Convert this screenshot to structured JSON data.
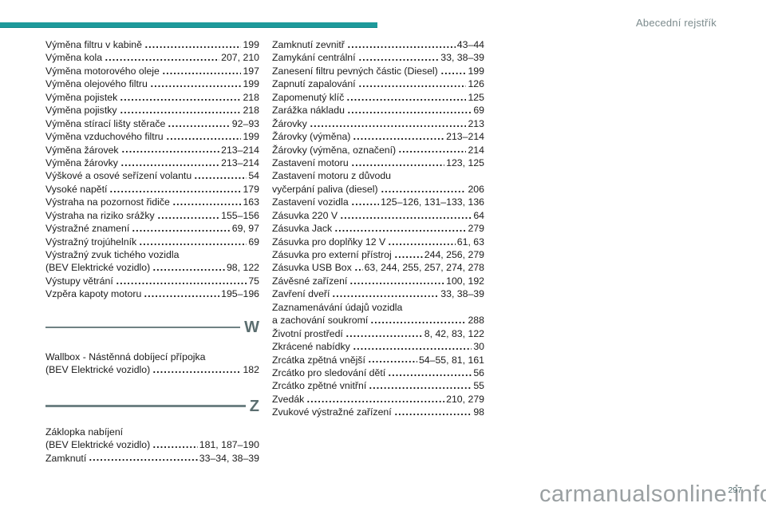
{
  "page": {
    "header": "Abecední rejstřík",
    "page_number": "297",
    "watermark": "carmanualsonline.info"
  },
  "colors": {
    "accent_teal": "#1E9A9B",
    "accent_teal_dark": "#12888A",
    "header_gray": "#7C8B8D",
    "text_color": "#1B1B1B",
    "section_line_gray": "#6F8284",
    "section_letter_gray": "#5B6E70",
    "watermark_gray": "#9AA0A2",
    "page_number_color": "#4A6466"
  },
  "index": {
    "left_column": [
      {
        "type": "entries",
        "items": [
          {
            "label": "Výměna filtru v kabině",
            "pages": "199"
          },
          {
            "label": "Výměna kola",
            "pages": "207, 210"
          },
          {
            "label": "Výměna motorového oleje",
            "pages": "197"
          },
          {
            "label": "Výměna olejového filtru",
            "pages": "199"
          },
          {
            "label": "Výměna pojistek",
            "pages": "218"
          },
          {
            "label": "Výměna pojistky",
            "pages": "218"
          },
          {
            "label": "Výměna stírací lišty stěrače",
            "pages": "92–93"
          },
          {
            "label": "Výměna vzduchového filtru",
            "pages": "199"
          },
          {
            "label": "Výměna žárovek",
            "pages": "213–214"
          },
          {
            "label": "Výměna žárovky",
            "pages": "213–214"
          },
          {
            "label": "Výškové a osové seřízení volantu",
            "pages": "54"
          },
          {
            "label": "Vysoké napětí",
            "pages": "179"
          },
          {
            "label": "Výstraha na pozornost řidiče",
            "pages": "163"
          },
          {
            "label": "Výstraha na riziko srážky",
            "pages": "155–156"
          },
          {
            "label": "Výstražné znamení",
            "pages": "69, 97"
          },
          {
            "label": "Výstražný trojúhelník",
            "pages": "69"
          },
          {
            "label": "Výstražný zvuk tichého vozidla",
            "pages": ""
          },
          {
            "label": "(BEV Elektrické vozidlo)",
            "pages": "98, 122"
          },
          {
            "label": "Výstupy větrání",
            "pages": "75"
          },
          {
            "label": "Vzpěra kapoty motoru",
            "pages": "195–196"
          }
        ]
      },
      {
        "type": "section",
        "letter": "W"
      },
      {
        "type": "entries",
        "items": [
          {
            "label": "Wallbox - Nástěnná dobíjecí přípojka",
            "pages": ""
          },
          {
            "label": "(BEV Elektrické vozidlo)",
            "pages": "182"
          }
        ]
      },
      {
        "type": "section",
        "letter": "Z"
      },
      {
        "type": "entries",
        "items": [
          {
            "label": "Záklopka nabíjení",
            "pages": ""
          },
          {
            "label": "(BEV Elektrické vozidlo)",
            "pages": "181, 187–190"
          },
          {
            "label": "Zamknutí",
            "pages": "33–34, 38–39"
          }
        ]
      }
    ],
    "right_column": [
      {
        "type": "entries",
        "items": [
          {
            "label": "Zamknutí zevnitř",
            "pages": "43–44"
          },
          {
            "label": "Zamykání centrální",
            "pages": "33, 38–39"
          },
          {
            "label": "Zanesení filtru pevných částic (Diesel)",
            "pages": "199"
          },
          {
            "label": "Zapnutí zapalování",
            "pages": "126"
          },
          {
            "label": "Zapomenutý klíč",
            "pages": "125"
          },
          {
            "label": "Zarážka nákladu",
            "pages": "69"
          },
          {
            "label": "Žárovky",
            "pages": "213"
          },
          {
            "label": "Žárovky (výměna)",
            "pages": "213–214"
          },
          {
            "label": "Žárovky (výměna, označení)",
            "pages": "214"
          },
          {
            "label": "Zastavení motoru",
            "pages": "123, 125"
          },
          {
            "label": "Zastavení motoru z důvodu",
            "pages": ""
          },
          {
            "label": "vyčerpání paliva (diesel)",
            "pages": "206"
          },
          {
            "label": "Zastavení vozidla",
            "pages": "125–126, 131–133, 136"
          },
          {
            "label": "Zásuvka 220 V",
            "pages": "64"
          },
          {
            "label": "Zásuvka Jack",
            "pages": "279"
          },
          {
            "label": "Zásuvka pro doplňky 12 V",
            "pages": "61, 63"
          },
          {
            "label": "Zásuvka pro externí přístroj",
            "pages": "244, 256, 279"
          },
          {
            "label": "Zásuvka USB Box",
            "pages": "63, 244, 255, 257, 274, 278"
          },
          {
            "label": "Závěsné zařízení",
            "pages": "100, 192"
          },
          {
            "label": "Zavření dveří",
            "pages": "33, 38–39"
          },
          {
            "label": "Zaznamenávání údajů vozidla",
            "pages": ""
          },
          {
            "label": "a zachování soukromí",
            "pages": "288"
          },
          {
            "label": "Životní prostředí",
            "pages": "8, 42, 83, 122"
          },
          {
            "label": "Zkrácené nabídky",
            "pages": "30"
          },
          {
            "label": "Zrcátka zpětná vnější",
            "pages": "54–55, 81, 161"
          },
          {
            "label": "Zrcátko pro sledování dětí",
            "pages": "56"
          },
          {
            "label": "Zrcátko zpětné vnitřní",
            "pages": "55"
          },
          {
            "label": "Zvedák",
            "pages": "210, 279"
          },
          {
            "label": "Zvukové výstražné zařízení",
            "pages": "98"
          }
        ]
      }
    ]
  }
}
